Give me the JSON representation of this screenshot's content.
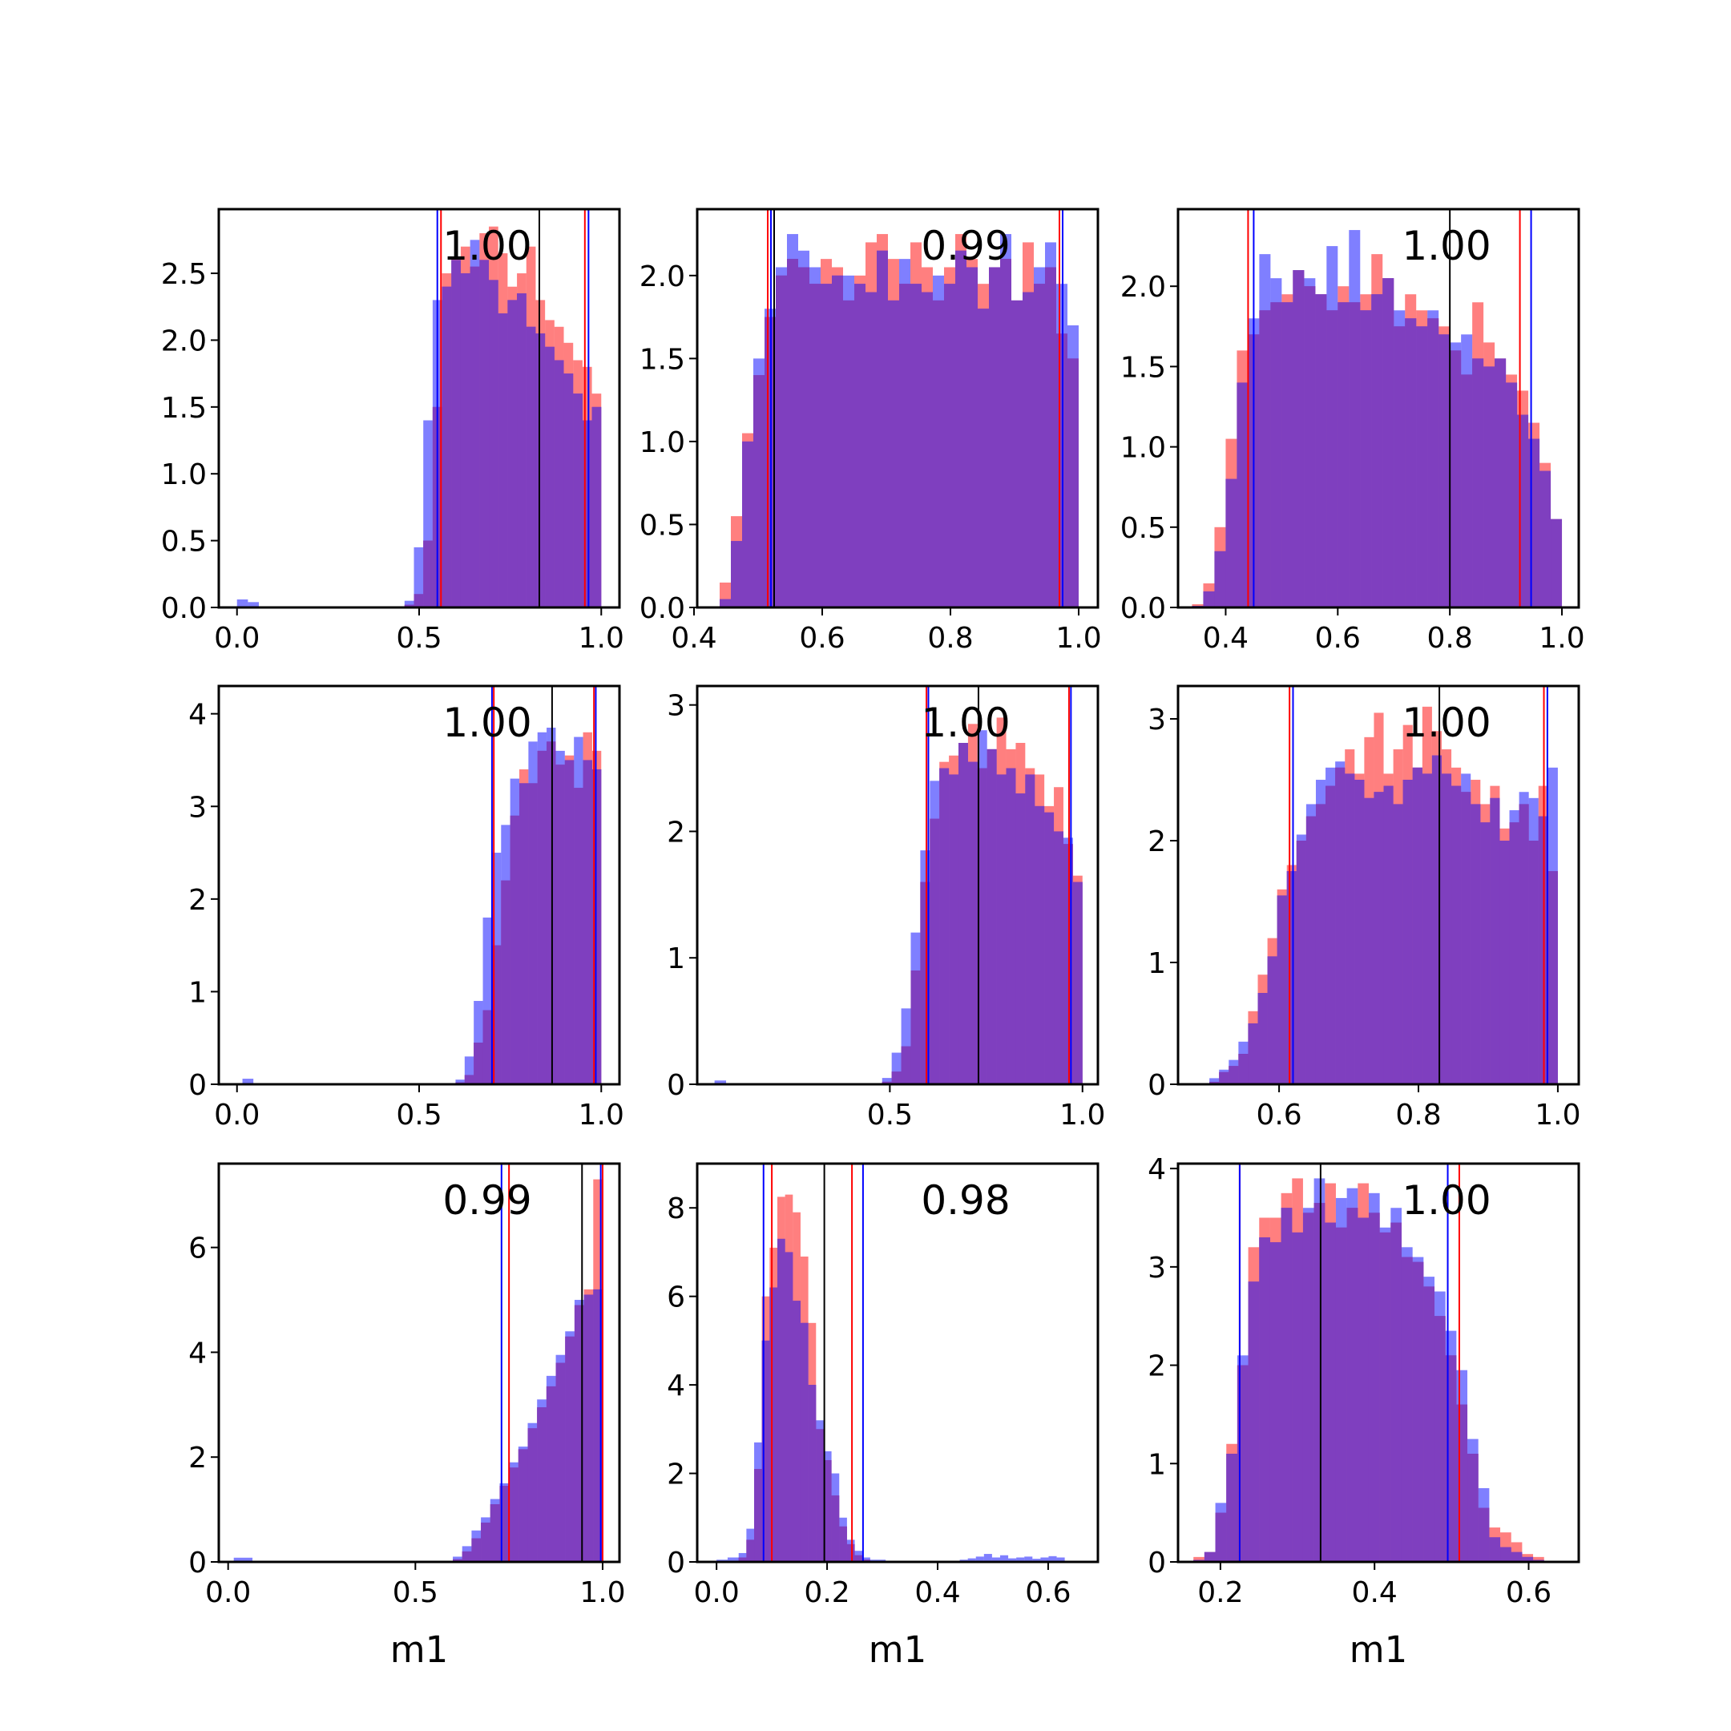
{
  "figure": {
    "colors": {
      "series_a": "#ff0000",
      "series_b": "#0000ff",
      "overlap_look": "#7f3fbf",
      "median_line": "#000000"
    }
  },
  "chart_data": [
    {
      "type": "bar",
      "xlabel": "",
      "annotation": "1.00",
      "xlim": [
        -0.05,
        1.05
      ],
      "ylim": [
        0,
        2.98
      ],
      "xticks": [
        0.0,
        0.5,
        1.0
      ],
      "xtick_labels": [
        "0.0",
        "0.5",
        "1.0"
      ],
      "yticks": [
        0,
        0.5,
        1.0,
        1.5,
        2.0,
        2.5
      ],
      "ytick_labels": [
        "0.0",
        "0.5",
        "1.0",
        "1.5",
        "2.0",
        "2.5"
      ],
      "median": 0.83,
      "intervals": [
        {
          "series": "red",
          "lo": 0.56,
          "hi": 0.955
        },
        {
          "series": "blue",
          "lo": 0.55,
          "hi": 0.965
        }
      ],
      "range": [
        0.46,
        1.0
      ],
      "red_density": [
        0.02,
        0.1,
        0.5,
        1.5,
        2.5,
        2.62,
        2.7,
        2.55,
        2.8,
        2.85,
        2.65,
        2.4,
        2.5,
        2.7,
        2.3,
        2.15,
        2.1,
        1.98,
        1.85,
        1.8,
        1.6
      ],
      "blue_density": [
        0.05,
        0.45,
        1.4,
        2.3,
        2.4,
        2.6,
        2.5,
        2.75,
        2.6,
        2.45,
        2.2,
        2.3,
        2.35,
        2.1,
        2.05,
        1.95,
        1.85,
        1.75,
        1.6,
        1.4,
        1.5
      ],
      "blue_low_density": [
        0.06,
        0.04
      ],
      "blue_low_range": [
        0.0,
        0.06
      ]
    },
    {
      "type": "bar",
      "xlabel": "",
      "annotation": "0.99",
      "xlim": [
        0.405,
        1.03
      ],
      "ylim": [
        0,
        2.4
      ],
      "xticks": [
        0.4,
        0.6,
        0.8,
        1.0
      ],
      "xtick_labels": [
        "0.4",
        "0.6",
        "0.8",
        "1.0"
      ],
      "yticks": [
        0,
        0.5,
        1.0,
        1.5,
        2.0
      ],
      "ytick_labels": [
        "0.0",
        "0.5",
        "1.0",
        "1.5",
        "2.0"
      ],
      "median": 0.525,
      "intervals": [
        {
          "series": "red",
          "lo": 0.515,
          "hi": 0.97
        },
        {
          "series": "blue",
          "lo": 0.52,
          "hi": 0.975
        }
      ],
      "range": [
        0.44,
        1.0
      ],
      "red_density": [
        0.15,
        0.55,
        1.05,
        1.4,
        1.75,
        2.0,
        2.1,
        2.05,
        1.95,
        2.1,
        2.05,
        1.85,
        2.0,
        2.2,
        2.25,
        2.1,
        1.95,
        2.2,
        2.05,
        1.85,
        2.05,
        2.25,
        2.1,
        1.95,
        2.05,
        2.1,
        1.85,
        2.2,
        1.95,
        2.05,
        1.65,
        1.5
      ],
      "blue_density": [
        0.05,
        0.4,
        1.0,
        1.5,
        1.8,
        2.05,
        2.25,
        2.15,
        2.05,
        1.95,
        2.0,
        2.0,
        1.95,
        1.9,
        2.15,
        1.85,
        2.1,
        1.95,
        1.9,
        2.0,
        1.95,
        2.15,
        2.05,
        1.8,
        2.05,
        2.25,
        1.85,
        1.9,
        2.05,
        2.2,
        1.95,
        1.7
      ]
    },
    {
      "type": "bar",
      "xlabel": "",
      "annotation": "1.00",
      "xlim": [
        0.315,
        1.03
      ],
      "ylim": [
        0,
        2.48
      ],
      "xticks": [
        0.4,
        0.6,
        0.8,
        1.0
      ],
      "xtick_labels": [
        "0.4",
        "0.6",
        "0.8",
        "1.0"
      ],
      "yticks": [
        0,
        0.5,
        1.0,
        1.5,
        2.0
      ],
      "ytick_labels": [
        "0.0",
        "0.5",
        "1.0",
        "1.5",
        "2.0"
      ],
      "median": 0.8,
      "intervals": [
        {
          "series": "red",
          "lo": 0.44,
          "hi": 0.925
        },
        {
          "series": "blue",
          "lo": 0.45,
          "hi": 0.945
        }
      ],
      "range": [
        0.34,
        1.0
      ],
      "red_density": [
        0.02,
        0.15,
        0.5,
        1.05,
        1.6,
        1.7,
        1.85,
        1.9,
        1.95,
        2.1,
        2.0,
        1.95,
        1.85,
        2.0,
        1.9,
        1.95,
        2.2,
        2.05,
        1.75,
        1.95,
        1.85,
        1.8,
        1.75,
        1.6,
        1.45,
        1.9,
        1.65,
        1.55,
        1.45,
        1.35,
        1.15,
        0.9,
        0.55
      ],
      "blue_density": [
        0.01,
        0.1,
        0.35,
        0.8,
        1.4,
        1.8,
        2.2,
        2.05,
        1.9,
        2.1,
        2.05,
        1.95,
        2.25,
        1.9,
        2.35,
        1.85,
        1.95,
        2.05,
        1.85,
        1.8,
        1.75,
        1.85,
        1.7,
        1.65,
        1.7,
        1.55,
        1.5,
        1.55,
        1.4,
        1.2,
        1.05,
        0.85,
        0.55
      ]
    },
    {
      "type": "bar",
      "xlabel": "",
      "annotation": "1.00",
      "xlim": [
        -0.05,
        1.05
      ],
      "ylim": [
        0,
        4.3
      ],
      "xticks": [
        0.0,
        0.5,
        1.0
      ],
      "xtick_labels": [
        "0.0",
        "0.5",
        "1.0"
      ],
      "yticks": [
        0,
        1,
        2,
        3,
        4
      ],
      "ytick_labels": [
        "0",
        "1",
        "2",
        "3",
        "4"
      ],
      "median": 0.865,
      "intervals": [
        {
          "series": "red",
          "lo": 0.705,
          "hi": 0.98
        },
        {
          "series": "blue",
          "lo": 0.7,
          "hi": 0.985
        }
      ],
      "range": [
        0.6,
        1.0
      ],
      "red_density": [
        0.02,
        0.1,
        0.45,
        0.8,
        1.5,
        2.2,
        2.9,
        3.4,
        3.25,
        3.6,
        3.7,
        3.45,
        3.55,
        3.2,
        3.8,
        3.6
      ],
      "blue_density": [
        0.05,
        0.3,
        0.9,
        1.8,
        2.5,
        2.8,
        3.3,
        3.25,
        3.7,
        3.8,
        3.85,
        3.6,
        3.5,
        3.75,
        3.5,
        3.4
      ],
      "blue_low_density": [
        0.06
      ],
      "blue_low_range": [
        0.015,
        0.045
      ]
    },
    {
      "type": "bar",
      "xlabel": "",
      "annotation": "1.00",
      "xlim": [
        0.0,
        1.04
      ],
      "ylim": [
        0,
        3.15
      ],
      "xticks": [
        0.5,
        1.0
      ],
      "xtick_labels": [
        "0.5",
        "1.0"
      ],
      "yticks": [
        0,
        1,
        2,
        3
      ],
      "ytick_labels": [
        "0",
        "1",
        "2",
        "3"
      ],
      "median": 0.73,
      "intervals": [
        {
          "series": "red",
          "lo": 0.595,
          "hi": 0.965
        },
        {
          "series": "blue",
          "lo": 0.6,
          "hi": 0.97
        }
      ],
      "range": [
        0.48,
        1.0
      ],
      "red_density": [
        0.02,
        0.1,
        0.3,
        0.9,
        1.6,
        2.1,
        2.55,
        2.6,
        2.7,
        2.85,
        2.5,
        2.65,
        2.9,
        2.65,
        2.7,
        2.5,
        2.45,
        2.2,
        2.35,
        1.9,
        1.65
      ],
      "blue_density": [
        0.05,
        0.25,
        0.6,
        1.2,
        1.85,
        2.4,
        2.5,
        2.45,
        2.7,
        2.55,
        2.8,
        2.65,
        2.45,
        2.5,
        2.3,
        2.45,
        2.2,
        2.15,
        2.0,
        1.95,
        1.6
      ],
      "blue_low_density": [
        0.03
      ],
      "blue_low_range": [
        0.045,
        0.075
      ]
    },
    {
      "type": "bar",
      "xlabel": "",
      "annotation": "1.00",
      "xlim": [
        0.455,
        1.03
      ],
      "ylim": [
        0,
        3.27
      ],
      "xticks": [
        0.6,
        0.8,
        1.0
      ],
      "xtick_labels": [
        "0.6",
        "0.8",
        "1.0"
      ],
      "yticks": [
        0,
        1,
        2,
        3
      ],
      "ytick_labels": [
        "0",
        "1",
        "2",
        "3"
      ],
      "median": 0.83,
      "intervals": [
        {
          "series": "red",
          "lo": 0.615,
          "hi": 0.98
        },
        {
          "series": "blue",
          "lo": 0.62,
          "hi": 0.985
        }
      ],
      "range": [
        0.5,
        1.0
      ],
      "red_density": [
        0.02,
        0.1,
        0.15,
        0.25,
        0.6,
        0.9,
        1.2,
        1.6,
        1.8,
        2.0,
        2.2,
        2.3,
        2.45,
        2.6,
        2.75,
        2.55,
        2.85,
        3.05,
        2.55,
        2.75,
        2.95,
        2.6,
        3.1,
        2.9,
        2.75,
        2.6,
        2.4,
        2.5,
        2.3,
        2.45,
        2.1,
        2.15,
        2.3,
        2.0,
        2.45,
        1.75
      ],
      "blue_density": [
        0.05,
        0.12,
        0.2,
        0.35,
        0.5,
        0.75,
        1.05,
        1.55,
        1.75,
        2.05,
        2.3,
        2.5,
        2.6,
        2.65,
        2.55,
        2.5,
        2.35,
        2.4,
        2.45,
        2.3,
        2.5,
        2.6,
        2.55,
        2.7,
        2.55,
        2.45,
        2.55,
        2.3,
        2.15,
        2.35,
        2.0,
        2.25,
        2.4,
        2.35,
        2.2,
        2.6
      ]
    },
    {
      "type": "bar",
      "xlabel": "m1",
      "annotation": "0.99",
      "xlim": [
        -0.025,
        1.045
      ],
      "ylim": [
        0,
        7.6
      ],
      "xticks": [
        0.0,
        0.5,
        1.0
      ],
      "xtick_labels": [
        "0.0",
        "0.5",
        "1.0"
      ],
      "yticks": [
        0,
        2,
        4,
        6
      ],
      "ytick_labels": [
        "0",
        "2",
        "4",
        "6"
      ],
      "median": 0.945,
      "intervals": [
        {
          "series": "red",
          "lo": 0.75,
          "hi": 1.0
        },
        {
          "series": "blue",
          "lo": 0.73,
          "hi": 0.995
        }
      ],
      "range": [
        0.6,
        1.0
      ],
      "red_density": [
        0.05,
        0.2,
        0.45,
        0.75,
        1.1,
        1.45,
        1.8,
        2.15,
        2.55,
        2.95,
        3.35,
        3.8,
        4.3,
        4.9,
        5.2,
        7.3
      ],
      "blue_density": [
        0.1,
        0.3,
        0.6,
        0.85,
        1.2,
        1.5,
        1.9,
        2.2,
        2.65,
        3.1,
        3.55,
        3.95,
        4.4,
        5.0,
        5.1,
        5.2
      ],
      "blue_low_density": [
        0.08
      ],
      "blue_low_range": [
        0.015,
        0.065
      ]
    },
    {
      "type": "bar",
      "xlabel": "m1",
      "annotation": "0.98",
      "xlim": [
        -0.035,
        0.69
      ],
      "ylim": [
        0,
        9.0
      ],
      "xticks": [
        0.0,
        0.2,
        0.4,
        0.6
      ],
      "xtick_labels": [
        "0.0",
        "0.2",
        "0.4",
        "0.6"
      ],
      "yticks": [
        0,
        2,
        4,
        6,
        8
      ],
      "ytick_labels": [
        "0",
        "2",
        "4",
        "6",
        "8"
      ],
      "median": 0.195,
      "intervals": [
        {
          "series": "red",
          "lo": 0.1,
          "hi": 0.245
        },
        {
          "series": "blue",
          "lo": 0.085,
          "hi": 0.265
        }
      ],
      "range": [
        0.04,
        0.32
      ],
      "red_density": [
        0.1,
        0.5,
        2.1,
        6.0,
        7.1,
        8.25,
        8.3,
        7.9,
        6.9,
        5.4,
        3.0,
        2.3,
        1.5,
        0.8,
        0.4,
        0.15,
        0.05,
        0.02,
        0.0,
        0.0
      ],
      "blue_density": [
        0.2,
        0.75,
        2.7,
        5.0,
        6.2,
        7.3,
        7.0,
        5.9,
        5.4,
        4.0,
        3.2,
        2.5,
        2.0,
        1.0,
        0.5,
        0.25,
        0.1,
        0.05,
        0.05,
        0.0
      ],
      "blue_low_density": [
        0.05,
        0.1
      ],
      "blue_low_range": [
        0.0,
        0.04
      ],
      "blue_high_density": [
        0.05,
        0.08,
        0.12,
        0.18,
        0.1,
        0.15,
        0.08,
        0.1,
        0.12,
        0.07,
        0.1,
        0.13,
        0.1
      ],
      "blue_high_range": [
        0.44,
        0.63
      ]
    },
    {
      "type": "bar",
      "xlabel": "m1",
      "annotation": "1.00",
      "xlim": [
        0.145,
        0.665
      ],
      "ylim": [
        0,
        4.05
      ],
      "xticks": [
        0.2,
        0.4,
        0.6
      ],
      "xtick_labels": [
        "0.2",
        "0.4",
        "0.6"
      ],
      "yticks": [
        0,
        1,
        2,
        3,
        4
      ],
      "ytick_labels": [
        "0",
        "1",
        "2",
        "3",
        "4"
      ],
      "median": 0.33,
      "intervals": [
        {
          "series": "red",
          "lo": 0.225,
          "hi": 0.51
        },
        {
          "series": "blue",
          "lo": 0.225,
          "hi": 0.495
        }
      ],
      "range": [
        0.165,
        0.62
      ],
      "red_density": [
        0.05,
        0.1,
        0.5,
        1.2,
        2.0,
        3.2,
        3.5,
        3.5,
        3.75,
        3.9,
        3.55,
        3.65,
        3.85,
        3.4,
        3.6,
        3.85,
        3.55,
        3.35,
        3.45,
        3.1,
        3.05,
        2.8,
        2.5,
        2.1,
        1.6,
        1.1,
        0.55,
        0.35,
        0.3,
        0.2,
        0.08,
        0.05
      ],
      "blue_density": [
        0.02,
        0.1,
        0.6,
        1.1,
        2.1,
        2.85,
        3.3,
        3.25,
        3.6,
        3.35,
        3.6,
        3.9,
        3.45,
        3.7,
        3.8,
        3.5,
        3.75,
        3.4,
        3.6,
        3.2,
        3.1,
        2.9,
        2.75,
        2.35,
        1.95,
        1.25,
        0.75,
        0.25,
        0.15,
        0.1,
        0.05,
        0.02
      ]
    }
  ]
}
